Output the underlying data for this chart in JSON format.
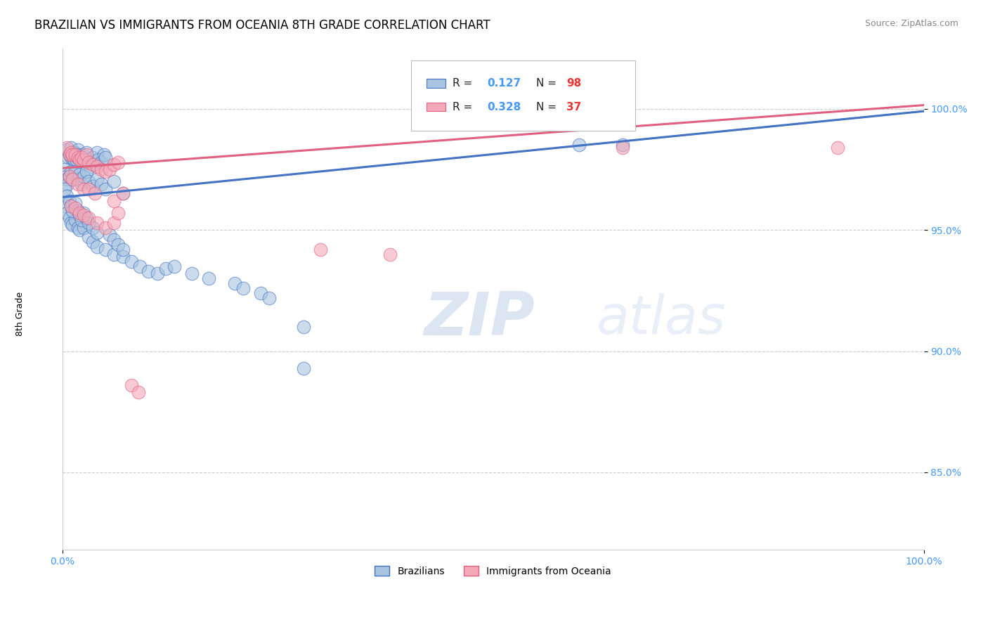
{
  "title": "BRAZILIAN VS IMMIGRANTS FROM OCEANIA 8TH GRADE CORRELATION CHART",
  "source_text": "Source: ZipAtlas.com",
  "ylabel": "8th Grade",
  "xlim": [
    0.0,
    1.0
  ],
  "ylim": [
    0.818,
    1.025
  ],
  "yticks": [
    0.85,
    0.9,
    0.95,
    1.0
  ],
  "ytick_labels": [
    "85.0%",
    "90.0%",
    "95.0%",
    "100.0%"
  ],
  "xticks": [
    0.0,
    1.0
  ],
  "xtick_labels": [
    "0.0%",
    "100.0%"
  ],
  "legend_label_blue": "Brazilians",
  "legend_label_pink": "Immigrants from Oceania",
  "blue_color": "#A8C4E0",
  "pink_color": "#F4A8B8",
  "line_blue_color": "#4472C4",
  "line_pink_color": "#E06080",
  "watermark_zip": "ZIP",
  "watermark_atlas": "atlas",
  "blue_line_y_intercept": 0.9635,
  "blue_line_slope": 0.0355,
  "pink_line_y_intercept": 0.9755,
  "pink_line_slope": 0.026,
  "background_color": "#FFFFFF",
  "grid_color": "#CCCCCC",
  "tick_color": "#4499FF",
  "title_fontsize": 12,
  "axis_label_fontsize": 9,
  "tick_fontsize": 10,
  "blue_points_x": [
    0.005,
    0.007,
    0.008,
    0.01,
    0.01,
    0.011,
    0.012,
    0.013,
    0.014,
    0.015,
    0.016,
    0.017,
    0.018,
    0.019,
    0.02,
    0.021,
    0.022,
    0.024,
    0.025,
    0.026,
    0.028,
    0.03,
    0.032,
    0.035,
    0.038,
    0.04,
    0.042,
    0.045,
    0.048,
    0.05,
    0.003,
    0.004,
    0.005,
    0.006,
    0.008,
    0.01,
    0.012,
    0.015,
    0.018,
    0.02,
    0.022,
    0.025,
    0.028,
    0.03,
    0.035,
    0.04,
    0.045,
    0.05,
    0.06,
    0.07,
    0.003,
    0.005,
    0.008,
    0.01,
    0.012,
    0.015,
    0.018,
    0.02,
    0.025,
    0.03,
    0.035,
    0.04,
    0.05,
    0.06,
    0.07,
    0.08,
    0.09,
    0.1,
    0.11,
    0.12,
    0.13,
    0.15,
    0.17,
    0.2,
    0.21,
    0.23,
    0.24,
    0.28,
    0.003,
    0.005,
    0.008,
    0.01,
    0.012,
    0.015,
    0.018,
    0.02,
    0.022,
    0.025,
    0.028,
    0.03,
    0.035,
    0.04,
    0.055,
    0.06,
    0.065,
    0.07,
    0.28,
    0.6,
    0.65
  ],
  "blue_points_y": [
    0.983,
    0.98,
    0.981,
    0.984,
    0.98,
    0.981,
    0.98,
    0.979,
    0.982,
    0.981,
    0.979,
    0.98,
    0.983,
    0.981,
    0.98,
    0.979,
    0.978,
    0.981,
    0.98,
    0.979,
    0.982,
    0.978,
    0.976,
    0.98,
    0.977,
    0.982,
    0.979,
    0.978,
    0.981,
    0.98,
    0.975,
    0.972,
    0.971,
    0.969,
    0.972,
    0.974,
    0.971,
    0.974,
    0.971,
    0.973,
    0.969,
    0.972,
    0.974,
    0.97,
    0.968,
    0.971,
    0.969,
    0.967,
    0.97,
    0.965,
    0.96,
    0.957,
    0.955,
    0.953,
    0.952,
    0.954,
    0.951,
    0.95,
    0.951,
    0.947,
    0.945,
    0.943,
    0.942,
    0.94,
    0.939,
    0.937,
    0.935,
    0.933,
    0.932,
    0.934,
    0.935,
    0.932,
    0.93,
    0.928,
    0.926,
    0.924,
    0.922,
    0.893,
    0.967,
    0.964,
    0.962,
    0.96,
    0.958,
    0.961,
    0.958,
    0.956,
    0.954,
    0.957,
    0.955,
    0.953,
    0.951,
    0.949,
    0.948,
    0.946,
    0.944,
    0.942,
    0.91,
    0.985,
    0.985
  ],
  "pink_points_x": [
    0.005,
    0.008,
    0.01,
    0.012,
    0.015,
    0.018,
    0.02,
    0.022,
    0.025,
    0.028,
    0.03,
    0.035,
    0.04,
    0.045,
    0.05,
    0.055,
    0.06,
    0.065,
    0.008,
    0.012,
    0.018,
    0.025,
    0.03,
    0.038,
    0.01,
    0.015,
    0.02,
    0.025,
    0.03,
    0.04,
    0.05,
    0.06,
    0.065,
    0.06,
    0.07,
    0.08,
    0.088,
    0.3,
    0.38,
    0.65,
    0.9
  ],
  "pink_points_y": [
    0.984,
    0.981,
    0.982,
    0.981,
    0.981,
    0.98,
    0.979,
    0.98,
    0.979,
    0.981,
    0.978,
    0.977,
    0.976,
    0.975,
    0.974,
    0.975,
    0.977,
    0.978,
    0.972,
    0.971,
    0.969,
    0.967,
    0.967,
    0.965,
    0.96,
    0.959,
    0.957,
    0.956,
    0.955,
    0.953,
    0.951,
    0.953,
    0.957,
    0.962,
    0.965,
    0.886,
    0.883,
    0.942,
    0.94,
    0.984,
    0.984
  ]
}
